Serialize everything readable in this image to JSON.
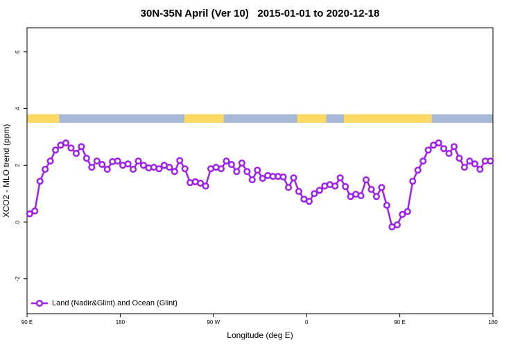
{
  "chart_data": {
    "type": "line",
    "title": "30N-35N April (Ver 10)   2015-01-01 to 2020-12-18",
    "x_label": "Longitude (deg E)",
    "y_label": "XCO2 - MLO trend (ppm)",
    "xlim": [
      90,
      540
    ],
    "xticks": [
      {
        "value": 90,
        "label": "90 E"
      },
      180,
      {
        "value": 270,
        "label": "90 W"
      },
      {
        "value": 360,
        "label": "0"
      },
      {
        "value": 450,
        "label": "90 E"
      },
      {
        "value": 540,
        "label": "180"
      }
    ],
    "ylim": [
      -3.23,
      6.85
    ],
    "yticks": [
      -2,
      0,
      2,
      4,
      6
    ],
    "legend": "bottom-left",
    "land_segments": [
      [
        90,
        121
      ],
      [
        242,
        280
      ],
      [
        351,
        379
      ],
      [
        396,
        481
      ]
    ],
    "band_ylim": [
      3.5,
      3.8
    ],
    "land_color": "#ffd966",
    "ocean_color": "#a7b9d8",
    "x": [
      92.5,
      97.5,
      102.5,
      107.5,
      112.5,
      117.5,
      122.5,
      127.5,
      132.5,
      137.5,
      142.5,
      147.5,
      152.5,
      157.5,
      162.5,
      167.5,
      172.5,
      177.5,
      182.5,
      187.5,
      192.5,
      197.5,
      202.5,
      207.5,
      212.5,
      217.5,
      222.5,
      227.5,
      232.5,
      237.5,
      242.5,
      247.5,
      252.5,
      257.5,
      262.5,
      267.5,
      272.5,
      277.5,
      282.5,
      287.5,
      292.5,
      297.5,
      302.5,
      307.5,
      312.5,
      317.5,
      322.5,
      327.5,
      332.5,
      337.5,
      342.5,
      347.5,
      352.5,
      357.5,
      362.5,
      367.5,
      372.5,
      377.5,
      382.5,
      387.5,
      392.5,
      397.5,
      402.5,
      407.5,
      412.5,
      417.5,
      422.5,
      427.5,
      432.5,
      437.5,
      442.5,
      447.5,
      452.5,
      457.5,
      462.5,
      467.5,
      472.5,
      477.5,
      482.5,
      487.5,
      492.5,
      497.5,
      502.5,
      507.5,
      512.5,
      517.5,
      522.5,
      527.5,
      532.5,
      537.5
    ],
    "series": [
      {
        "name": "Land (Nadir&Glint) and Ocean (Glint)",
        "color": "#a020f0",
        "values": [
          0.29,
          0.39,
          1.44,
          1.86,
          2.15,
          2.54,
          2.71,
          2.79,
          2.61,
          2.42,
          2.66,
          2.25,
          1.93,
          2.15,
          2.03,
          1.86,
          2.13,
          2.15,
          2.0,
          2.05,
          1.86,
          2.15,
          2.0,
          1.91,
          1.93,
          1.88,
          2.0,
          1.93,
          1.78,
          2.17,
          1.88,
          1.39,
          1.42,
          1.37,
          1.27,
          1.88,
          1.93,
          1.88,
          2.15,
          2.03,
          1.78,
          2.08,
          1.78,
          1.49,
          1.83,
          1.54,
          1.64,
          1.61,
          1.61,
          1.59,
          1.22,
          1.56,
          1.08,
          0.81,
          0.73,
          1.0,
          1.12,
          1.27,
          1.32,
          1.27,
          1.56,
          1.25,
          0.9,
          0.98,
          0.93,
          1.49,
          1.15,
          0.9,
          1.22,
          0.59,
          -0.17,
          -0.1,
          0.27,
          0.37,
          1.44,
          1.83,
          2.15,
          2.54,
          2.71,
          2.79,
          2.59,
          2.42,
          2.66,
          2.25,
          1.93,
          2.15,
          2.05,
          1.86,
          2.15,
          2.15
        ]
      }
    ]
  }
}
